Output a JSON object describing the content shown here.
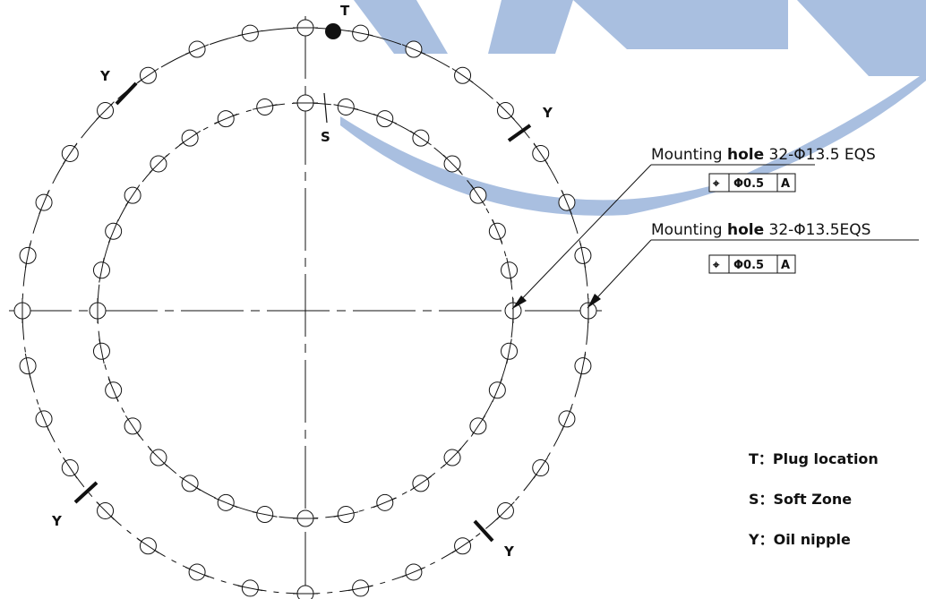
{
  "colors": {
    "watermark": "#a9bfe0",
    "line": "#111111"
  },
  "markers": {
    "plug": "T",
    "soft_zone": "S",
    "oil_nipple": "Y"
  },
  "callouts": [
    {
      "prefix": "Mounting ",
      "bold_word": "hole",
      "suffix": " 32-Φ13.5 EQS",
      "tolerance_symbol": "⌖",
      "tolerance": "Φ0.5",
      "datum": "A"
    },
    {
      "prefix": "Mounting ",
      "bold_word": "hole",
      "suffix": " 32-Φ13.5EQS",
      "tolerance_symbol": "⌖",
      "tolerance": "Φ0.5",
      "datum": "A"
    }
  ],
  "legend": [
    {
      "text": "T：Plug location"
    },
    {
      "text": "S：Soft Zone"
    },
    {
      "text": "Y：Oil nipple"
    }
  ],
  "diagram": {
    "outer_hole_count": 32,
    "inner_hole_count": 32
  }
}
